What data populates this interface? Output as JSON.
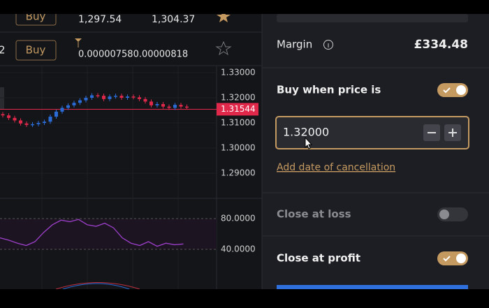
{
  "watchlist": {
    "rows": [
      {
        "action": "Buy",
        "sell": "1,297.54",
        "buy": "1,304.37"
      },
      {
        "index": "2",
        "action": "Buy",
        "spread": "0.000007580.00000818"
      }
    ]
  },
  "chart": {
    "ylim": [
      1.2803,
      1.3325
    ],
    "yticks": [
      {
        "value": 1.33,
        "label": "1.33000"
      },
      {
        "value": 1.32,
        "label": "1.32000"
      },
      {
        "value": 1.31,
        "label": "1.31000"
      },
      {
        "value": 1.3,
        "label": "1.30000"
      },
      {
        "value": 1.29,
        "label": "1.29000"
      }
    ],
    "current_price": {
      "value": 1.31544,
      "label": "1.31544"
    },
    "candles": [
      [
        1.3135,
        1.313
      ],
      [
        1.313,
        1.312
      ],
      [
        1.312,
        1.311
      ],
      [
        1.311,
        1.3098
      ],
      [
        1.3098,
        1.3092
      ],
      [
        1.3092,
        1.3095
      ],
      [
        1.3095,
        1.31
      ],
      [
        1.31,
        1.3105
      ],
      [
        1.3105,
        1.3125
      ],
      [
        1.3125,
        1.3145
      ],
      [
        1.3145,
        1.316
      ],
      [
        1.316,
        1.317
      ],
      [
        1.317,
        1.318
      ],
      [
        1.318,
        1.319
      ],
      [
        1.319,
        1.32
      ],
      [
        1.32,
        1.321
      ],
      [
        1.321,
        1.3208
      ],
      [
        1.3208,
        1.3195
      ],
      [
        1.3195,
        1.3205
      ],
      [
        1.3205,
        1.3208
      ],
      [
        1.3208,
        1.32
      ],
      [
        1.32,
        1.3205
      ],
      [
        1.3205,
        1.3202
      ],
      [
        1.3202,
        1.3195
      ],
      [
        1.3195,
        1.3185
      ],
      [
        1.3185,
        1.317
      ],
      [
        1.317,
        1.3175
      ],
      [
        1.3175,
        1.3165
      ],
      [
        1.3165,
        1.316
      ],
      [
        1.316,
        1.3172
      ],
      [
        1.3172,
        1.3165
      ],
      [
        1.3165,
        1.3162
      ]
    ]
  },
  "indicator": {
    "ylim": [
      -10.9,
      105.5
    ],
    "yticks": [
      {
        "value": 80,
        "label": "80.0000"
      },
      {
        "value": 40,
        "label": "40.0000"
      }
    ],
    "values": [
      55,
      52,
      48,
      45,
      50,
      62,
      72,
      78,
      76,
      79,
      72,
      70,
      74,
      68,
      55,
      48,
      45,
      50,
      44,
      48,
      46,
      47
    ]
  },
  "order_panel": {
    "margin_label": "Margin",
    "margin_value": "£334.48",
    "buy_when_label": "Buy when price is",
    "price_input": "1.32000",
    "cancellation_link": "Add date of cancellation",
    "close_at_loss": "Close at loss",
    "close_at_profit": "Close at profit"
  }
}
